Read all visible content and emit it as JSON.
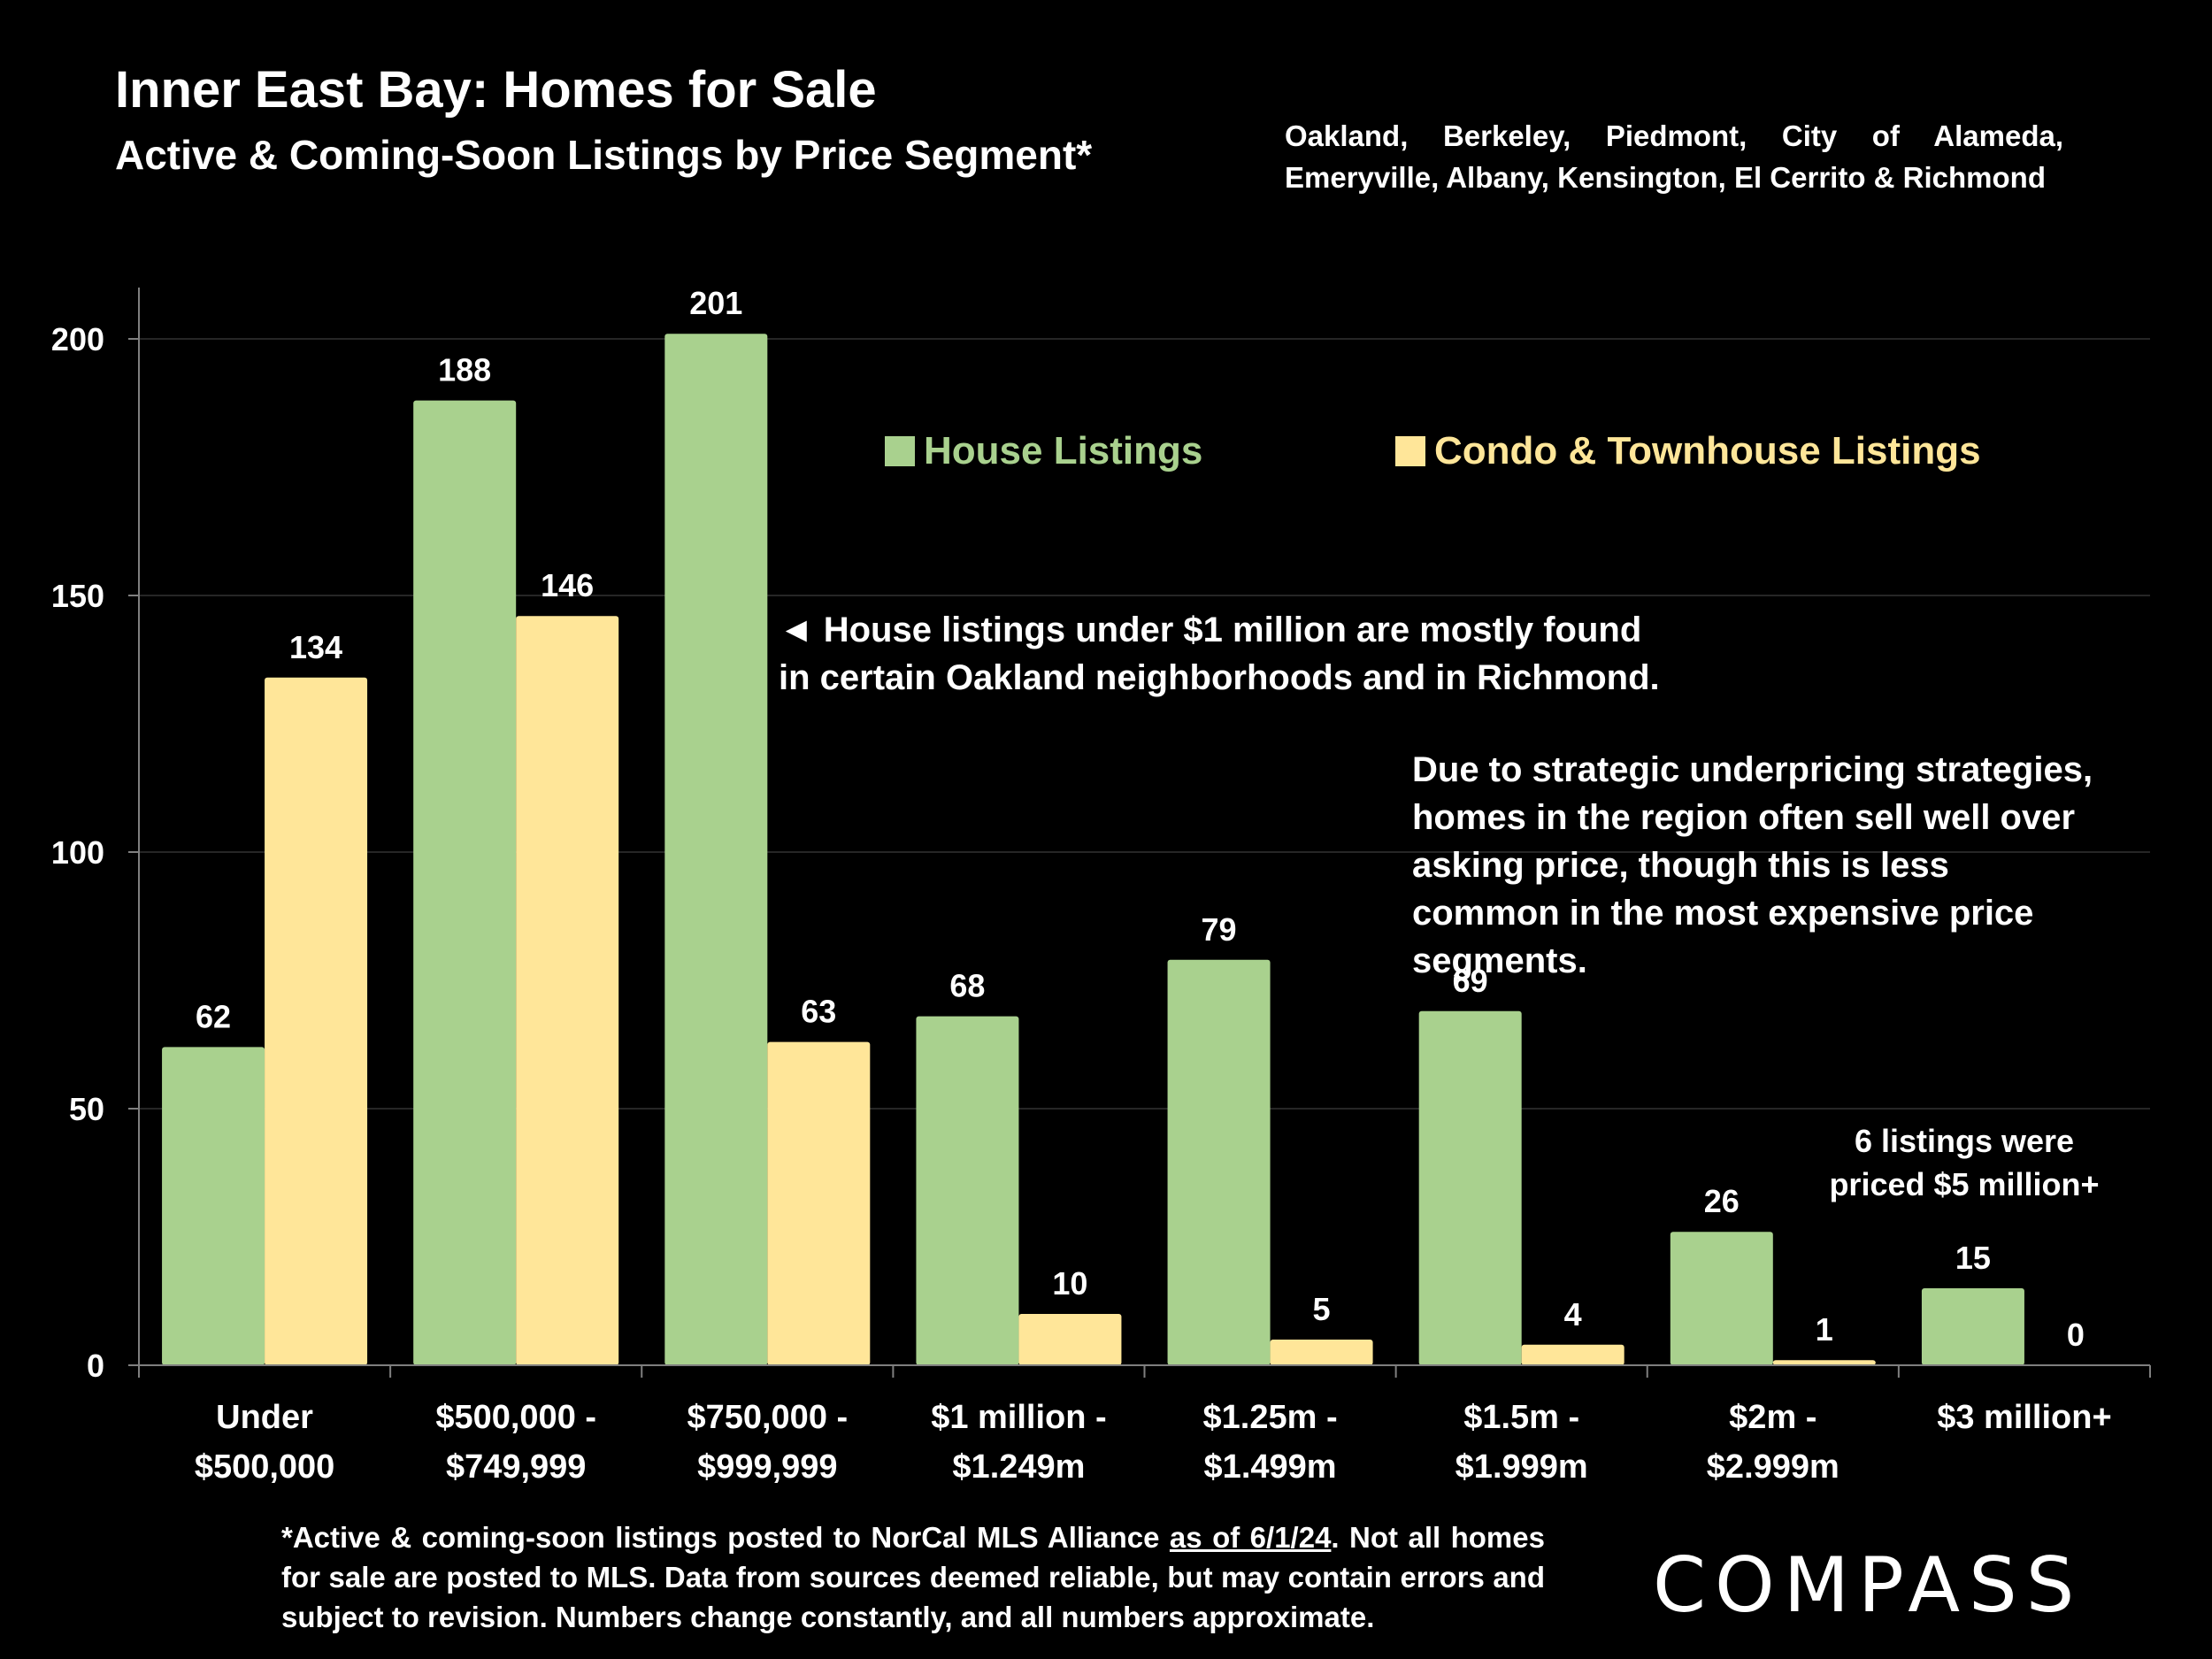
{
  "header": {
    "title": "Inner East Bay: Homes for Sale",
    "subtitle": "Active & Coming-Soon Listings by Price Segment*",
    "cities_line1": "Oakland, Berkeley, Piedmont, City of Alameda,",
    "cities_line2": "Emeryville, Albany, Kensington, El Cerrito & Richmond"
  },
  "legend": {
    "house": "House Listings",
    "condo": "Condo & Townhouse Listings"
  },
  "annotations": {
    "note1_line1": "◄ House listings under $1 million are mostly found",
    "note1_line2": "in certain Oakland neighborhoods and in Richmond.",
    "note2": "Due to strategic underpricing strategies, homes in the region often sell well over asking price, though this is less common in the most expensive price segments.",
    "note3_line1": "6 listings were",
    "note3_line2": "priced $5 million+"
  },
  "footnote": {
    "part1": "*Active & coming-soon listings posted to NorCal MLS Alliance ",
    "underlined": "as of 6/1/24",
    "part2": ". Not all homes for sale are posted to MLS. Data from sources deemed reliable, but may contain errors and subject to revision. Numbers change constantly, and all numbers approximate."
  },
  "logo": "COMPASS",
  "colors": {
    "house": "#a9d18e",
    "condo": "#ffe699",
    "background": "#000000",
    "text": "#ffffff"
  },
  "chart_data": {
    "type": "bar",
    "categories": [
      [
        "Under",
        "$500,000"
      ],
      [
        "$500,000 -",
        "$749,999"
      ],
      [
        "$750,000 -",
        "$999,999"
      ],
      [
        "$1 million -",
        "$1.249m"
      ],
      [
        "$1.25m -",
        "$1.499m"
      ],
      [
        "$1.5m -",
        "$1.999m"
      ],
      [
        "$2m -",
        "$2.999m"
      ],
      [
        "$3 million+"
      ]
    ],
    "series": [
      {
        "name": "House Listings",
        "values": [
          62,
          188,
          201,
          68,
          79,
          69,
          26,
          15
        ]
      },
      {
        "name": "Condo & Townhouse Listings",
        "values": [
          134,
          146,
          63,
          10,
          5,
          4,
          1,
          0
        ]
      }
    ],
    "yticks": [
      0,
      50,
      100,
      150,
      200
    ],
    "ylim": [
      0,
      210
    ],
    "grid": true,
    "legend_position": "top-right"
  }
}
